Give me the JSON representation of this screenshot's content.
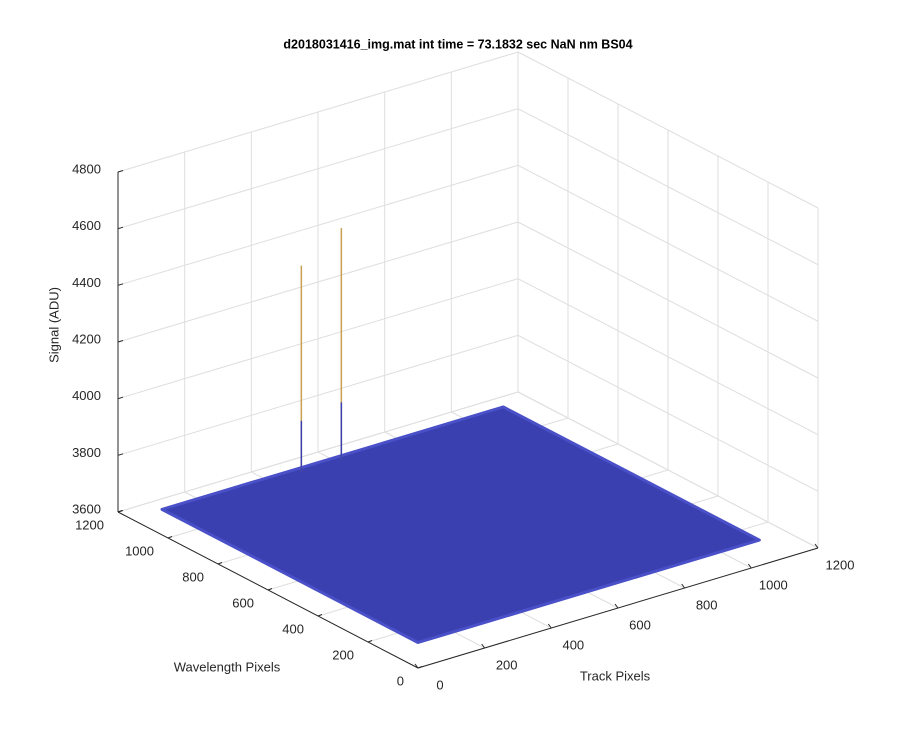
{
  "chart_data": {
    "type": "surface3d",
    "title": "d2018031416_img.mat int time = 73.1832 sec  NaN nm BS04",
    "x_label": "Track Pixels",
    "y_label": "Wavelength Pixels",
    "z_label": "Signal (ADU)",
    "xlim": [
      0,
      1200
    ],
    "ylim": [
      0,
      1200
    ],
    "zlim": [
      3600,
      4800
    ],
    "xticks": [
      0,
      200,
      400,
      600,
      800,
      1000,
      1200
    ],
    "yticks": [
      0,
      200,
      400,
      600,
      800,
      1000,
      1200
    ],
    "zticks": [
      3600,
      3800,
      4000,
      4200,
      4400,
      4600,
      4800
    ],
    "x": [
      0,
      1024
    ],
    "y": [
      0,
      1024
    ],
    "z": [
      [
        3690,
        3690
      ],
      [
        3690,
        3690
      ]
    ],
    "points": [
      {
        "x": 400,
        "y": 1000,
        "z": 4420
      },
      {
        "x": 520,
        "y": 1000,
        "z": 4510
      }
    ],
    "color": "#3a40b0",
    "grid": true
  }
}
